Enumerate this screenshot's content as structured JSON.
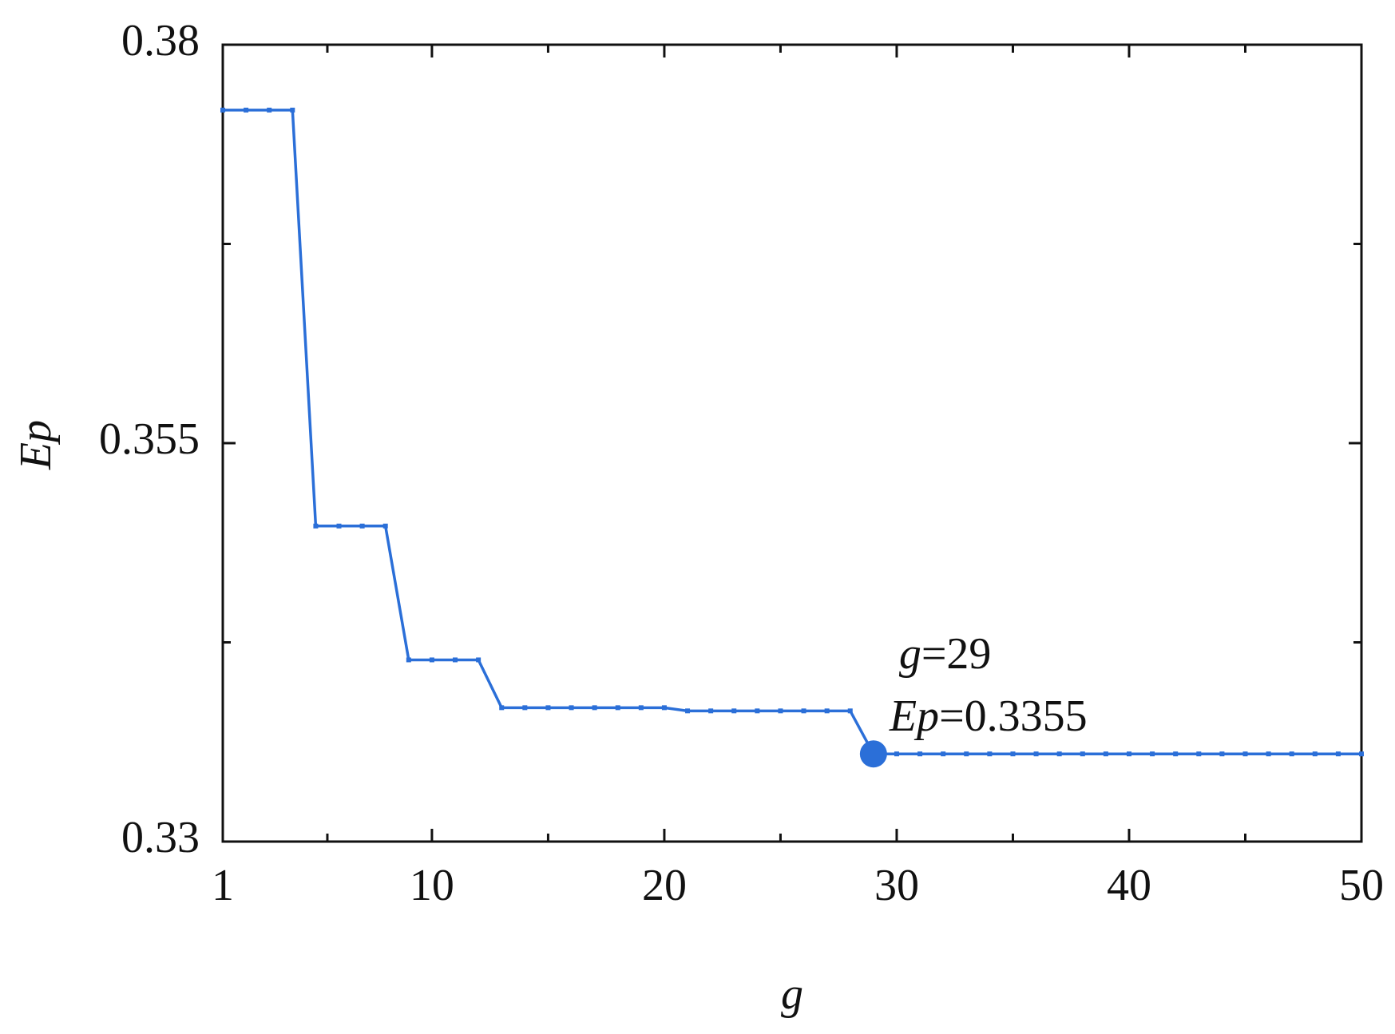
{
  "chart_data": {
    "type": "line",
    "x": [
      1,
      2,
      3,
      4,
      5,
      6,
      7,
      8,
      9,
      10,
      11,
      12,
      13,
      14,
      15,
      16,
      17,
      18,
      19,
      20,
      21,
      22,
      23,
      24,
      25,
      26,
      27,
      28,
      29,
      30,
      31,
      32,
      33,
      34,
      35,
      36,
      37,
      38,
      39,
      40,
      41,
      42,
      43,
      44,
      45,
      46,
      47,
      48,
      49,
      50
    ],
    "series": [
      {
        "color": "#2b6fd8",
        "values": [
          0.3759,
          0.3759,
          0.3759,
          0.3759,
          0.3498,
          0.3498,
          0.3498,
          0.3498,
          0.3414,
          0.3414,
          0.3414,
          0.3414,
          0.3384,
          0.3384,
          0.3384,
          0.3384,
          0.3384,
          0.3384,
          0.3384,
          0.3384,
          0.3382,
          0.3382,
          0.3382,
          0.3382,
          0.3382,
          0.3382,
          0.3382,
          0.3382,
          0.3355,
          0.3355,
          0.3355,
          0.3355,
          0.3355,
          0.3355,
          0.3355,
          0.3355,
          0.3355,
          0.3355,
          0.3355,
          0.3355,
          0.3355,
          0.3355,
          0.3355,
          0.3355,
          0.3355,
          0.3355,
          0.3355,
          0.3355,
          0.3355,
          0.3355
        ]
      }
    ],
    "xlim": [
      1,
      50
    ],
    "xticks": [
      1,
      10,
      20,
      30,
      40,
      50
    ],
    "ylim": [
      0.33,
      0.38
    ],
    "yticks": [
      0.33,
      0.355,
      0.38
    ],
    "xlabel": "g",
    "ylabel": "Ep",
    "highlight": {
      "x": 29,
      "y": 0.3355,
      "text": [
        "g=29",
        "Ep=0.3355"
      ]
    }
  }
}
